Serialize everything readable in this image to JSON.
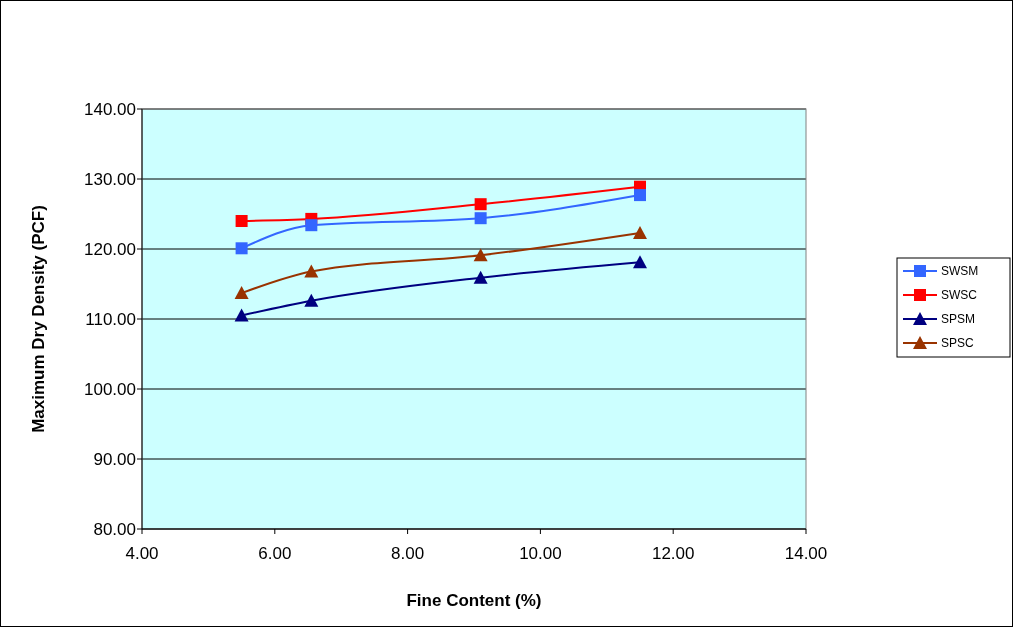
{
  "chart_data": {
    "type": "line",
    "xlabel": "Fine Content (%)",
    "ylabel": "Maximum Dry Density (PCF)",
    "xlim": [
      4,
      14
    ],
    "xticks": [
      {
        "value": 4,
        "label": "4.00"
      },
      {
        "value": 6,
        "label": "6.00"
      },
      {
        "value": 8,
        "label": "8.00"
      },
      {
        "value": 10,
        "label": "10.00"
      },
      {
        "value": 12,
        "label": "12.00"
      },
      {
        "value": 14,
        "label": "14.00"
      }
    ],
    "ylim": [
      80,
      140
    ],
    "yticks": [
      {
        "value": 80,
        "label": "80.00"
      },
      {
        "value": 90,
        "label": "90.00"
      },
      {
        "value": 100,
        "label": "100.00"
      },
      {
        "value": 110,
        "label": "110.00"
      },
      {
        "value": 120,
        "label": "120.00"
      },
      {
        "value": 130,
        "label": "130.00"
      },
      {
        "value": 140,
        "label": "140.00"
      }
    ],
    "x": [
      5.5,
      6.55,
      9.1,
      11.5
    ],
    "grid": "y",
    "legend": "right",
    "line_style": "solid",
    "series": [
      {
        "name": "SWSM",
        "color": "#3366ff",
        "marker": "square",
        "values": [
          120.1,
          123.4,
          124.4,
          127.7
        ]
      },
      {
        "name": "SWSC",
        "color": "#ff0000",
        "marker": "square",
        "values": [
          124.0,
          124.3,
          126.4,
          128.9
        ]
      },
      {
        "name": "SPSM",
        "color": "#000080",
        "marker": "triangle",
        "values": [
          110.5,
          112.6,
          115.9,
          118.1
        ]
      },
      {
        "name": "SPSC",
        "color": "#993300",
        "marker": "triangle",
        "values": [
          113.7,
          116.8,
          119.1,
          122.3
        ]
      }
    ]
  }
}
